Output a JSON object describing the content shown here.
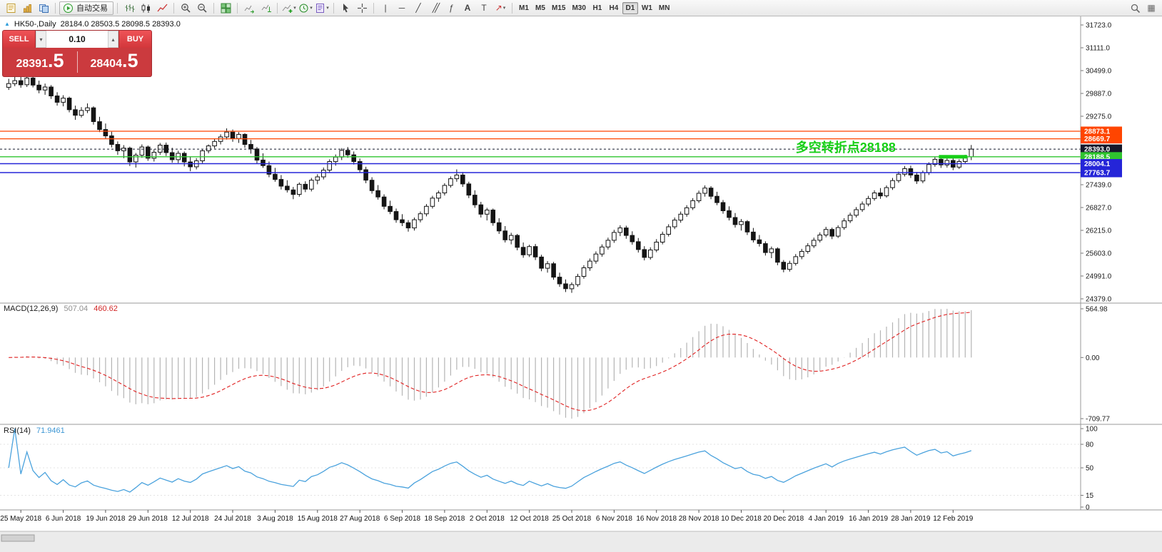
{
  "header": {
    "title": "HK50-,Daily",
    "ohlc": "28184.0 28503.5 28098.5 28393.0"
  },
  "toolbar": {
    "autotrading_label": "自动交易",
    "timeframes": [
      "M1",
      "M5",
      "M15",
      "M30",
      "H1",
      "H4",
      "D1",
      "W1",
      "MN"
    ],
    "active_timeframe": "D1",
    "groups": [
      {
        "items": [
          {
            "name": "new-order",
            "glyph": "order"
          },
          {
            "name": "new-chart",
            "glyph": "chart-add"
          },
          {
            "name": "profiles",
            "glyph": "profiles"
          }
        ]
      },
      {
        "items": [
          {
            "name": "autotrading",
            "glyph": "play",
            "button": true,
            "label": "自动交易"
          }
        ]
      },
      {
        "items": [
          {
            "name": "bar-chart",
            "glyph": "bars"
          },
          {
            "name": "candlestick-chart",
            "glyph": "candles"
          },
          {
            "name": "line-chart",
            "glyph": "line"
          }
        ]
      },
      {
        "items": [
          {
            "name": "zoom-in",
            "glyph": "zoom-in"
          },
          {
            "name": "zoom-out",
            "glyph": "zoom-out"
          }
        ]
      },
      {
        "items": [
          {
            "name": "tile-windows",
            "glyph": "grid"
          }
        ]
      },
      {
        "items": [
          {
            "name": "auto-scroll",
            "glyph": "scroll"
          },
          {
            "name": "chart-shift",
            "glyph": "shift"
          }
        ]
      },
      {
        "items": [
          {
            "name": "indicators-list",
            "glyph": "indicator",
            "caret": true
          },
          {
            "name": "periods",
            "glyph": "clock",
            "caret": true
          },
          {
            "name": "templates",
            "glyph": "template",
            "caret": true
          }
        ]
      },
      {
        "items": [
          {
            "name": "cursor",
            "glyph": "cursor"
          },
          {
            "name": "crosshair",
            "glyph": "crosshair"
          }
        ]
      },
      {
        "items": [
          {
            "name": "vertical-line",
            "glyph": "vline"
          },
          {
            "name": "horizontal-line",
            "glyph": "hline"
          },
          {
            "name": "trendline",
            "glyph": "trend"
          },
          {
            "name": "equidistant-channel",
            "glyph": "channel"
          },
          {
            "name": "fibonacci-retracement",
            "glyph": "fibo"
          },
          {
            "name": "text",
            "glyph": "text"
          },
          {
            "name": "text-label",
            "glyph": "label"
          },
          {
            "name": "arrows",
            "glyph": "arrows",
            "caret": true
          }
        ]
      }
    ],
    "right_items": [
      {
        "name": "search",
        "glyph": "search"
      },
      {
        "name": "layout",
        "glyph": "layout"
      }
    ]
  },
  "trade_panel": {
    "sell_label": "SELL",
    "buy_label": "BUY",
    "volume": "0.10",
    "sell_price": {
      "main": "28391",
      "frac": ".5"
    },
    "buy_price": {
      "main": "28404",
      "frac": ".5"
    }
  },
  "chart_data": {
    "type": "candlestick",
    "symbol": "HK50-",
    "timeframe": "Daily",
    "last_ohlc": {
      "open": 28184.0,
      "high": 28503.5,
      "low": 28098.5,
      "close": 28393.0
    },
    "price_axis": {
      "min": 24379,
      "max": 31723,
      "ticks": [
        31723,
        31111,
        30499,
        29887,
        29275,
        28663,
        28051,
        27439,
        26827,
        26215,
        25603,
        24991,
        24379
      ]
    },
    "levels": [
      {
        "price": 28873.1,
        "label": "28873.1",
        "color": "#ff4500",
        "width": 1.2
      },
      {
        "price": 28669.7,
        "label": "28669.7",
        "color": "#ff4500",
        "width": 1.2
      },
      {
        "price": 28393.0,
        "label": "28393.0",
        "color": "#15182b",
        "width": 1,
        "style": "current"
      },
      {
        "price": 28188.5,
        "label": "28188.5",
        "color": "#2fc42f",
        "width": 1.4
      },
      {
        "price": 28004.1,
        "label": "28004.1",
        "color": "#2525d8",
        "width": 1.6
      },
      {
        "price": 27763.7,
        "label": "27763.7",
        "color": "#2525d8",
        "width": 1.6
      }
    ],
    "annotation": {
      "text": "多空转折点28188",
      "color": "#17cf17",
      "bar": 130,
      "price": 28188.5,
      "segment": {
        "from_bar": 154,
        "to_bar": 158
      }
    },
    "x_ticks": [
      {
        "label": "25 May 2018",
        "bar": 2
      },
      {
        "label": "6 Jun 2018",
        "bar": 9
      },
      {
        "label": "19 Jun 2018",
        "bar": 16
      },
      {
        "label": "29 Jun 2018",
        "bar": 23
      },
      {
        "label": "12 Jul 2018",
        "bar": 30
      },
      {
        "label": "24 Jul 2018",
        "bar": 37
      },
      {
        "label": "3 Aug 2018",
        "bar": 44
      },
      {
        "label": "15 Aug 2018",
        "bar": 51
      },
      {
        "label": "27 Aug 2018",
        "bar": 58
      },
      {
        "label": "6 Sep 2018",
        "bar": 65
      },
      {
        "label": "18 Sep 2018",
        "bar": 72
      },
      {
        "label": "2 Oct 2018",
        "bar": 79
      },
      {
        "label": "12 Oct 2018",
        "bar": 86
      },
      {
        "label": "25 Oct 2018",
        "bar": 93
      },
      {
        "label": "6 Nov 2018",
        "bar": 100
      },
      {
        "label": "16 Nov 2018",
        "bar": 107
      },
      {
        "label": "28 Nov 2018",
        "bar": 114
      },
      {
        "label": "10 Dec 2018",
        "bar": 121
      },
      {
        "label": "20 Dec 2018",
        "bar": 128
      },
      {
        "label": "4 Jan 2019",
        "bar": 135
      },
      {
        "label": "16 Jan 2019",
        "bar": 142
      },
      {
        "label": "28 Jan 2019",
        "bar": 149
      },
      {
        "label": "12 Feb 2019",
        "bar": 156
      }
    ],
    "candles": [
      [
        30050,
        30280,
        29980,
        30150
      ],
      [
        30150,
        30420,
        30080,
        30230
      ],
      [
        30230,
        30360,
        30040,
        30120
      ],
      [
        30120,
        30390,
        30060,
        30300
      ],
      [
        30300,
        30350,
        30050,
        30110
      ],
      [
        30110,
        30230,
        29890,
        29980
      ],
      [
        29980,
        30150,
        29850,
        30060
      ],
      [
        30060,
        30110,
        29740,
        29820
      ],
      [
        29820,
        29920,
        29560,
        29650
      ],
      [
        29650,
        29840,
        29540,
        29760
      ],
      [
        29760,
        29800,
        29380,
        29450
      ],
      [
        29450,
        29560,
        29180,
        29300
      ],
      [
        29300,
        29520,
        29240,
        29430
      ],
      [
        29430,
        29620,
        29360,
        29500
      ],
      [
        29500,
        29540,
        29050,
        29130
      ],
      [
        29130,
        29260,
        28850,
        28920
      ],
      [
        28920,
        29080,
        28680,
        28750
      ],
      [
        28750,
        28860,
        28440,
        28520
      ],
      [
        28520,
        28600,
        28240,
        28350
      ],
      [
        28350,
        28500,
        28150,
        28420
      ],
      [
        28420,
        28460,
        27940,
        28050
      ],
      [
        28050,
        28290,
        27900,
        28230
      ],
      [
        28230,
        28520,
        28160,
        28450
      ],
      [
        28450,
        28490,
        28080,
        28150
      ],
      [
        28150,
        28390,
        28060,
        28310
      ],
      [
        28310,
        28560,
        28240,
        28500
      ],
      [
        28500,
        28570,
        28210,
        28300
      ],
      [
        28300,
        28430,
        28030,
        28110
      ],
      [
        28110,
        28350,
        28020,
        28280
      ],
      [
        28280,
        28330,
        27930,
        28050
      ],
      [
        28050,
        28180,
        27800,
        27920
      ],
      [
        27920,
        28150,
        27850,
        28080
      ],
      [
        28080,
        28380,
        28010,
        28350
      ],
      [
        28350,
        28520,
        28280,
        28480
      ],
      [
        28480,
        28680,
        28410,
        28600
      ],
      [
        28600,
        28790,
        28520,
        28720
      ],
      [
        28720,
        28950,
        28650,
        28850
      ],
      [
        28850,
        28920,
        28590,
        28680
      ],
      [
        28680,
        28850,
        28560,
        28790
      ],
      [
        28790,
        28820,
        28430,
        28520
      ],
      [
        28520,
        28640,
        28270,
        28400
      ],
      [
        28400,
        28450,
        28010,
        28100
      ],
      [
        28100,
        28280,
        27890,
        27950
      ],
      [
        27950,
        28060,
        27640,
        27720
      ],
      [
        27720,
        27890,
        27520,
        27580
      ],
      [
        27580,
        27700,
        27310,
        27400
      ],
      [
        27400,
        27560,
        27230,
        27300
      ],
      [
        27300,
        27380,
        27050,
        27180
      ],
      [
        27180,
        27500,
        27120,
        27450
      ],
      [
        27450,
        27530,
        27240,
        27320
      ],
      [
        27320,
        27620,
        27260,
        27560
      ],
      [
        27560,
        27720,
        27450,
        27650
      ],
      [
        27650,
        27900,
        27580,
        27830
      ],
      [
        27830,
        28120,
        27760,
        28060
      ],
      [
        28060,
        28250,
        27950,
        28180
      ],
      [
        28180,
        28420,
        28100,
        28360
      ],
      [
        28360,
        28450,
        28160,
        28240
      ],
      [
        28240,
        28330,
        27980,
        28060
      ],
      [
        28060,
        28140,
        27760,
        27840
      ],
      [
        27840,
        27920,
        27480,
        27560
      ],
      [
        27560,
        27640,
        27200,
        27280
      ],
      [
        27280,
        27430,
        27040,
        27110
      ],
      [
        27110,
        27180,
        26780,
        26860
      ],
      [
        26860,
        27010,
        26650,
        26720
      ],
      [
        26720,
        26800,
        26420,
        26500
      ],
      [
        26500,
        26650,
        26330,
        26420
      ],
      [
        26420,
        26490,
        26180,
        26280
      ],
      [
        26280,
        26560,
        26210,
        26500
      ],
      [
        26500,
        26720,
        26430,
        26660
      ],
      [
        26660,
        26920,
        26590,
        26860
      ],
      [
        26860,
        27140,
        26800,
        27080
      ],
      [
        27080,
        27280,
        26980,
        27220
      ],
      [
        27220,
        27480,
        27150,
        27420
      ],
      [
        27420,
        27660,
        27360,
        27600
      ],
      [
        27600,
        27850,
        27520,
        27700
      ],
      [
        27700,
        27780,
        27380,
        27460
      ],
      [
        27460,
        27520,
        27080,
        27160
      ],
      [
        27160,
        27290,
        26820,
        26900
      ],
      [
        26900,
        26980,
        26560,
        26650
      ],
      [
        26650,
        26820,
        26480,
        26760
      ],
      [
        26760,
        26800,
        26340,
        26420
      ],
      [
        26420,
        26540,
        26120,
        26200
      ],
      [
        26200,
        26330,
        25890,
        25960
      ],
      [
        25960,
        26150,
        25840,
        26080
      ],
      [
        26080,
        26120,
        25680,
        25760
      ],
      [
        25760,
        25890,
        25480,
        25560
      ],
      [
        25560,
        25830,
        25500,
        25780
      ],
      [
        25780,
        25850,
        25420,
        25500
      ],
      [
        25500,
        25560,
        25120,
        25200
      ],
      [
        25200,
        25390,
        25080,
        25320
      ],
      [
        25320,
        25370,
        24890,
        24960
      ],
      [
        24960,
        25080,
        24700,
        24780
      ],
      [
        24780,
        24900,
        24560,
        24650
      ],
      [
        24650,
        24820,
        24540,
        24760
      ],
      [
        24760,
        25050,
        24700,
        24980
      ],
      [
        24980,
        25280,
        24920,
        25210
      ],
      [
        25210,
        25460,
        25130,
        25390
      ],
      [
        25390,
        25650,
        25320,
        25580
      ],
      [
        25580,
        25840,
        25510,
        25770
      ],
      [
        25770,
        26020,
        25700,
        25950
      ],
      [
        25950,
        26230,
        25880,
        26160
      ],
      [
        26160,
        26350,
        26060,
        26280
      ],
      [
        26280,
        26340,
        25990,
        26080
      ],
      [
        26080,
        26190,
        25830,
        25910
      ],
      [
        25910,
        26010,
        25620,
        25700
      ],
      [
        25700,
        25790,
        25410,
        25490
      ],
      [
        25490,
        25760,
        25430,
        25690
      ],
      [
        25690,
        25980,
        25630,
        25900
      ],
      [
        25900,
        26180,
        25840,
        26110
      ],
      [
        26110,
        26380,
        26050,
        26310
      ],
      [
        26310,
        26560,
        26250,
        26490
      ],
      [
        26490,
        26720,
        26420,
        26650
      ],
      [
        26650,
        26890,
        26580,
        26820
      ],
      [
        26820,
        27080,
        26760,
        27010
      ],
      [
        27010,
        27280,
        26950,
        27210
      ],
      [
        27210,
        27420,
        27120,
        27350
      ],
      [
        27350,
        27400,
        27050,
        27130
      ],
      [
        27130,
        27250,
        26890,
        26960
      ],
      [
        26960,
        27030,
        26660,
        26740
      ],
      [
        26740,
        26860,
        26480,
        26560
      ],
      [
        26560,
        26680,
        26290,
        26370
      ],
      [
        26370,
        26520,
        26210,
        26450
      ],
      [
        26450,
        26490,
        26090,
        26170
      ],
      [
        26170,
        26280,
        25890,
        25960
      ],
      [
        25960,
        26090,
        25780,
        25860
      ],
      [
        25860,
        25920,
        25540,
        25620
      ],
      [
        25620,
        25780,
        25470,
        25720
      ],
      [
        25720,
        25760,
        25280,
        25360
      ],
      [
        25360,
        25420,
        25090,
        25170
      ],
      [
        25170,
        25400,
        25110,
        25330
      ],
      [
        25330,
        25580,
        25270,
        25510
      ],
      [
        25510,
        25720,
        25440,
        25650
      ],
      [
        25650,
        25870,
        25590,
        25800
      ],
      [
        25800,
        26020,
        25740,
        25950
      ],
      [
        25950,
        26160,
        25890,
        26090
      ],
      [
        26090,
        26310,
        26030,
        26240
      ],
      [
        26240,
        26290,
        25980,
        26060
      ],
      [
        26060,
        26350,
        26010,
        26290
      ],
      [
        26290,
        26540,
        26230,
        26470
      ],
      [
        26470,
        26690,
        26410,
        26620
      ],
      [
        26620,
        26840,
        26560,
        26770
      ],
      [
        26770,
        26990,
        26710,
        26920
      ],
      [
        26920,
        27140,
        26860,
        27070
      ],
      [
        27070,
        27290,
        27010,
        27220
      ],
      [
        27220,
        27350,
        27060,
        27140
      ],
      [
        27140,
        27420,
        27090,
        27360
      ],
      [
        27360,
        27620,
        27300,
        27550
      ],
      [
        27550,
        27790,
        27490,
        27720
      ],
      [
        27720,
        27940,
        27660,
        27870
      ],
      [
        27870,
        27950,
        27620,
        27700
      ],
      [
        27700,
        27780,
        27460,
        27540
      ],
      [
        27540,
        27820,
        27480,
        27760
      ],
      [
        27760,
        28040,
        27700,
        27980
      ],
      [
        27980,
        28180,
        27920,
        28120
      ],
      [
        28120,
        28230,
        27890,
        27970
      ],
      [
        27970,
        28150,
        27900,
        28090
      ],
      [
        28090,
        28160,
        27830,
        27910
      ],
      [
        27910,
        28120,
        27860,
        28060
      ],
      [
        28060,
        28240,
        28000,
        28190
      ],
      [
        28184,
        28503.5,
        28098.5,
        28393
      ]
    ],
    "macd": {
      "label": "MACD(12,26,9)",
      "fast": 12,
      "slow": 26,
      "signal": 9,
      "value_main": "507.04",
      "value_signal": "460.62",
      "axis": {
        "max": 564.98,
        "min": -709.77,
        "labels": [
          "564.98",
          "0.00",
          "-709.77"
        ]
      }
    },
    "rsi": {
      "label": "RSI(14)",
      "period": 14,
      "value": "71.9461",
      "levels": [
        80,
        50,
        15
      ],
      "axis_ticks": [
        100,
        80,
        50,
        15,
        0
      ]
    }
  }
}
